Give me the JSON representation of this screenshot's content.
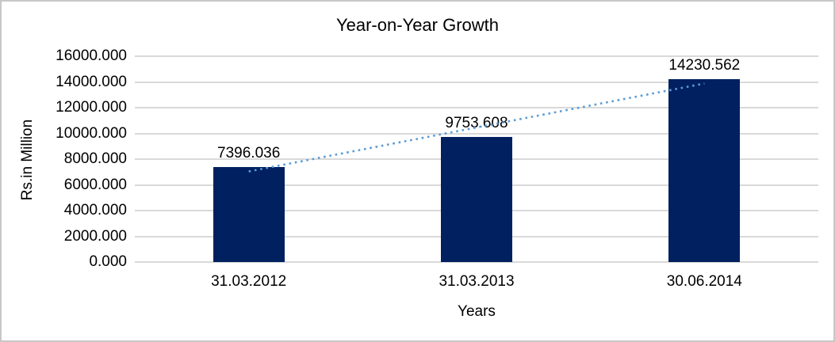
{
  "chart_data": {
    "type": "bar",
    "title": "Year-on-Year Growth",
    "xlabel": "Years",
    "ylabel": "Rs.in Million",
    "categories": [
      "31.03.2012",
      "31.03.2013",
      "30.06.2014"
    ],
    "values": [
      7396.036,
      9753.608,
      14230.562
    ],
    "data_labels": [
      "7396.036",
      "9753.608",
      "14230.562"
    ],
    "ylim": [
      0,
      16000
    ],
    "y_tick_step": 2000,
    "y_tick_labels": [
      "0.000",
      "2000.000",
      "4000.000",
      "6000.000",
      "8000.000",
      "10000.000",
      "12000.000",
      "14000.000",
      "16000.000"
    ],
    "grid": true,
    "legend": "none",
    "bar_color": "#002060",
    "gridline_color": "#d9d9d9",
    "trendline": {
      "type": "linear",
      "style": "dotted",
      "color": "#5b9bd5"
    }
  }
}
